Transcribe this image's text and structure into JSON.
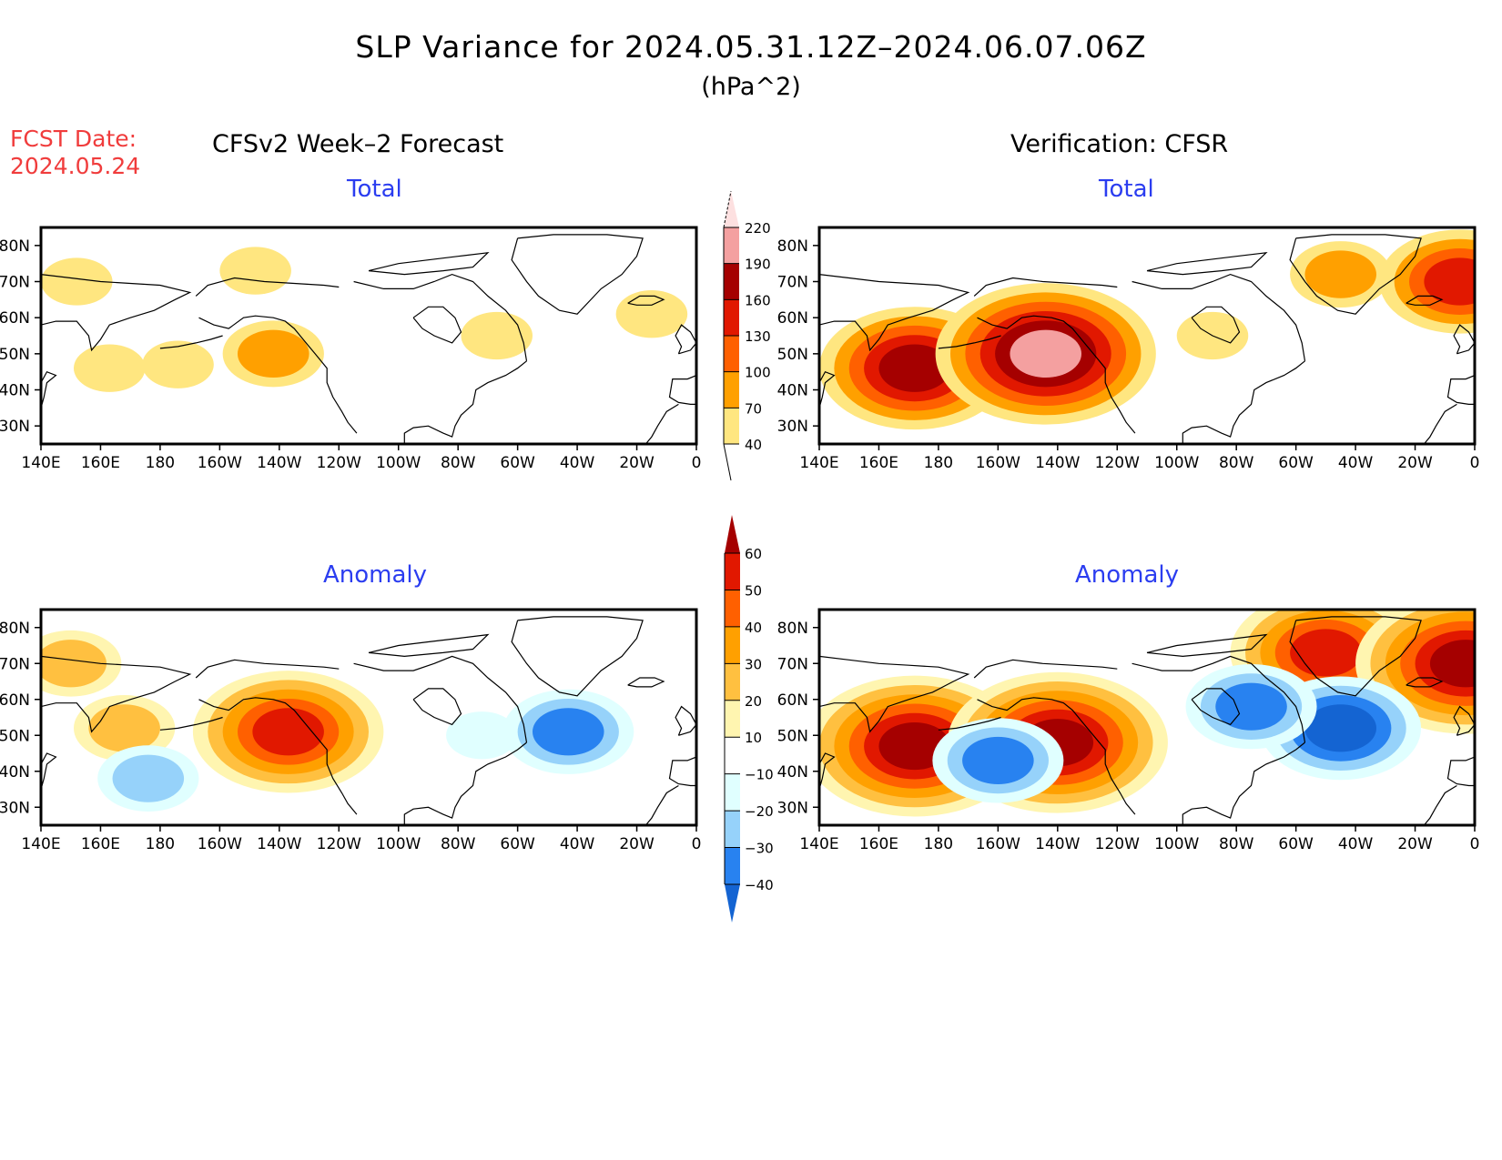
{
  "title": "SLP Variance for 2024.05.31.12Z–2024.06.07.06Z",
  "units": "(hPa^2)",
  "fcst_date_label": "FCST Date:",
  "fcst_date": "2024.05.24",
  "forecast_header": "CFSv2 Week–2 Forecast",
  "verification_header": "Verification: CFSR",
  "chart_data": [
    {
      "type": "heatmap",
      "panel": "forecast-total",
      "title": "Total",
      "xlabel": "",
      "ylabel": "",
      "xticks": [
        "140E",
        "160E",
        "180",
        "160W",
        "140W",
        "120W",
        "100W",
        "80W",
        "60W",
        "40W",
        "20W",
        "0"
      ],
      "yticks": [
        "30N",
        "40N",
        "50N",
        "60N",
        "70N",
        "80N"
      ],
      "xlim": [
        140,
        360
      ],
      "ylim": [
        25,
        85
      ],
      "colorbar": "total",
      "features": [
        {
          "lon": 163,
          "lat": 46,
          "level": 40
        },
        {
          "lon": 186,
          "lat": 47,
          "level": 40
        },
        {
          "lon": 218,
          "lat": 50,
          "level": 70
        },
        {
          "lon": 152,
          "lat": 70,
          "level": 40
        },
        {
          "lon": 212,
          "lat": 73,
          "level": 40
        },
        {
          "lon": 345,
          "lat": 61,
          "level": 40
        },
        {
          "lon": 293,
          "lat": 55,
          "level": 40
        }
      ]
    },
    {
      "type": "heatmap",
      "panel": "verification-total",
      "title": "Total",
      "xticks": [
        "140E",
        "160E",
        "180",
        "160W",
        "140W",
        "120W",
        "100W",
        "80W",
        "60W",
        "40W",
        "20W",
        "0"
      ],
      "yticks": [
        "30N",
        "40N",
        "50N",
        "60N",
        "70N",
        "80N"
      ],
      "xlim": [
        140,
        360
      ],
      "ylim": [
        25,
        85
      ],
      "colorbar": "total",
      "features": [
        {
          "lon": 170,
          "lat": 47,
          "level": 100
        },
        {
          "lon": 172,
          "lat": 46,
          "level": 160
        },
        {
          "lon": 217,
          "lat": 50,
          "level": 130
        },
        {
          "lon": 216,
          "lat": 50,
          "level": 190
        },
        {
          "lon": 315,
          "lat": 72,
          "level": 70
        },
        {
          "lon": 355,
          "lat": 70,
          "level": 130
        },
        {
          "lon": 272,
          "lat": 55,
          "level": 40
        }
      ]
    },
    {
      "type": "heatmap",
      "panel": "forecast-anomaly",
      "title": "Anomaly",
      "xticks": [
        "140E",
        "160E",
        "180",
        "160W",
        "140W",
        "120W",
        "100W",
        "80W",
        "60W",
        "40W",
        "20W",
        "0"
      ],
      "yticks": [
        "30N",
        "40N",
        "50N",
        "60N",
        "70N",
        "80N"
      ],
      "xlim": [
        140,
        360
      ],
      "ylim": [
        25,
        85
      ],
      "colorbar": "anomaly",
      "features": [
        {
          "lon": 223,
          "lat": 51,
          "level": 50
        },
        {
          "lon": 168,
          "lat": 52,
          "level": 20
        },
        {
          "lon": 176,
          "lat": 38,
          "level": -20
        },
        {
          "lon": 317,
          "lat": 51,
          "level": -30
        },
        {
          "lon": 288,
          "lat": 50,
          "level": -10
        },
        {
          "lon": 150,
          "lat": 70,
          "level": 20
        }
      ]
    },
    {
      "type": "heatmap",
      "panel": "verification-anomaly",
      "title": "Anomaly",
      "xticks": [
        "140E",
        "160E",
        "180",
        "160W",
        "140W",
        "120W",
        "100W",
        "80W",
        "60W",
        "40W",
        "20W",
        "0"
      ],
      "yticks": [
        "30N",
        "40N",
        "50N",
        "60N",
        "70N",
        "80N"
      ],
      "xlim": [
        140,
        360
      ],
      "ylim": [
        25,
        85
      ],
      "colorbar": "anomaly",
      "features": [
        {
          "lon": 172,
          "lat": 47,
          "level": 60
        },
        {
          "lon": 220,
          "lat": 48,
          "level": 60
        },
        {
          "lon": 200,
          "lat": 43,
          "level": -30
        },
        {
          "lon": 310,
          "lat": 73,
          "level": 50
        },
        {
          "lon": 357,
          "lat": 70,
          "level": 60
        },
        {
          "lon": 315,
          "lat": 52,
          "level": -40
        },
        {
          "lon": 285,
          "lat": 58,
          "level": -30
        }
      ]
    }
  ],
  "colorbars": {
    "total": {
      "levels": [
        "40",
        "70",
        "100",
        "130",
        "160",
        "190",
        "220"
      ],
      "colors": [
        "#ffe680",
        "#ffa000",
        "#ff6000",
        "#e11800",
        "#a50000",
        "#f4a0a0",
        "#fde0e0"
      ]
    },
    "anomaly": {
      "levels": [
        "60",
        "50",
        "40",
        "30",
        "20",
        "10",
        "−10",
        "−20",
        "−30",
        "−40"
      ],
      "colors": [
        "#a50000",
        "#e11800",
        "#ff6000",
        "#ffa000",
        "#ffc040",
        "#fff5b0",
        "#ffffff",
        "#e0ffff",
        "#96d2fa",
        "#2882f0",
        "#1464d2"
      ]
    }
  }
}
